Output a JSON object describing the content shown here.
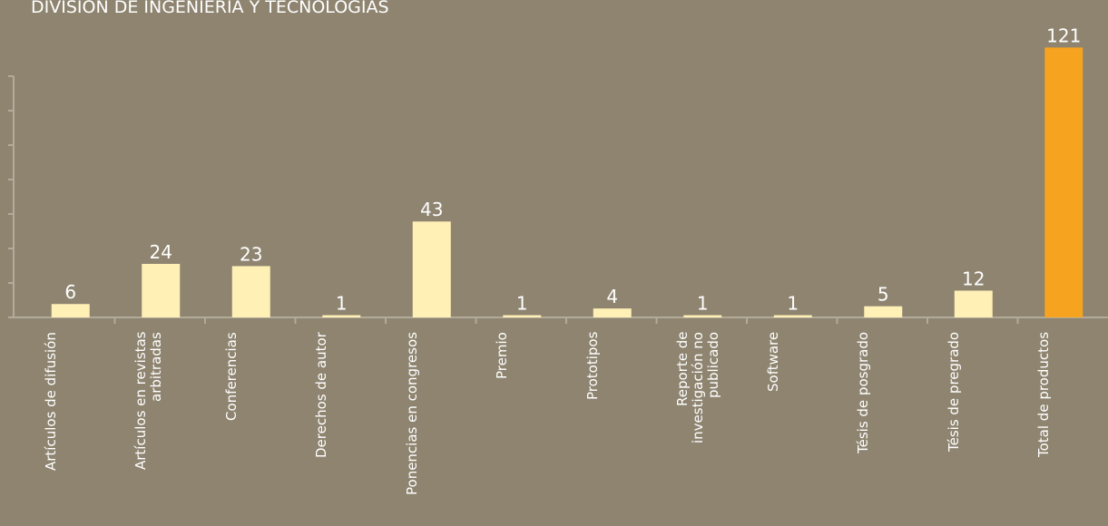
{
  "chart_data": {
    "type": "bar",
    "title": "DIVISIÓN DE INGENIERÍA Y TECNOLOGÍAS",
    "categories": [
      "Artículos de difusión",
      "Artículos en revistas\narbitradas",
      "Conferencias",
      "Derechos de autor",
      "Ponencias en congresos",
      "Premio",
      "Prototipos",
      "Reporte de\ninvestigación no\npublicado",
      "Software",
      "Tésis de posgrado",
      "Tésis de pregrado",
      "Total de productos"
    ],
    "values": [
      6,
      24,
      23,
      1,
      43,
      1,
      4,
      1,
      1,
      5,
      12,
      121
    ],
    "colors": [
      "#fff0b6",
      "#fff0b6",
      "#fff0b6",
      "#fff0b6",
      "#fff0b6",
      "#fff0b6",
      "#fff0b6",
      "#fff0b6",
      "#fff0b6",
      "#fff0b6",
      "#fff0b6",
      "#f6a31f"
    ],
    "ylim": [
      0,
      124
    ]
  }
}
